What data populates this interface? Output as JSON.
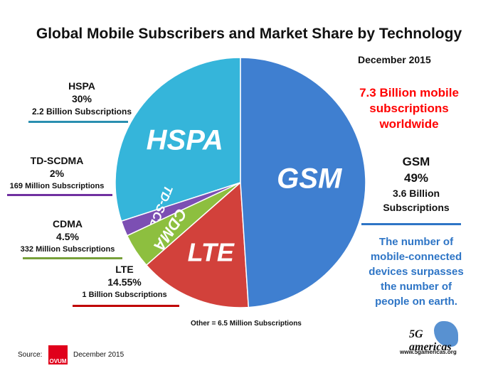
{
  "chart_data": {
    "type": "pie",
    "title": "Global Mobile Subscribers and Market Share by Technology",
    "subtitle": "December 2015",
    "slices": [
      {
        "name": "HSPA",
        "percent": 30,
        "subscriptions": "2.2 Billion  Subscriptions",
        "color": "#35b5da",
        "line_color": "#2a8fb0"
      },
      {
        "name": "TD-SCDMA",
        "percent": 2,
        "subscriptions": "169 Million Subscriptions",
        "color": "#7c4fb3",
        "line_color": "#7030a0"
      },
      {
        "name": "CDMA",
        "percent": 4.5,
        "subscriptions": "332 Million Subscriptions",
        "color": "#8dbf3f",
        "line_color": "#77a03a"
      },
      {
        "name": "LTE",
        "percent": 14.55,
        "subscriptions": "1 Billion Subscriptions",
        "color": "#d2413b",
        "line_color": "#c00000"
      },
      {
        "name": "GSM",
        "percent": 49,
        "subscriptions": "3.6 Billion Subscriptions",
        "color": "#3f7fd0",
        "line_color": "#2e75c6"
      }
    ],
    "labels": {
      "hspa_pct": "30%",
      "td_pct": "2%",
      "cdma_pct": "4.5%",
      "lte_pct": "14.55%",
      "gsm_pct": "49%",
      "gsm_sub1": "3.6 Billion",
      "gsm_sub2": "Subscriptions"
    },
    "annotations": {
      "total": [
        "7.3 Billion mobile",
        "subscriptions",
        "worldwide"
      ],
      "note": [
        "The number of",
        "mobile-connected",
        "devices surpasses",
        "the number of",
        "people on earth."
      ],
      "other": "Other = 6.5 Million Subscriptions"
    }
  },
  "footer": {
    "source_label": "Source:",
    "source_logo": "OVUM",
    "source_date": "December 2015",
    "brand_logo": "5G americas",
    "brand_url": "www.5gamericas.org"
  },
  "colors": {
    "total": "#ff0000",
    "note": "#2e75c6"
  }
}
